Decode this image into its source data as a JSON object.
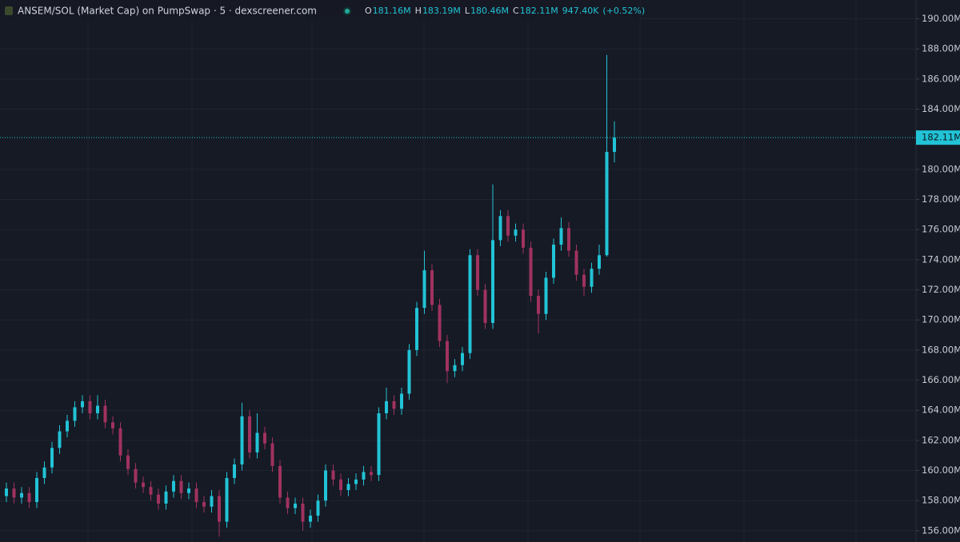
{
  "chart_data": {
    "type": "candlestick",
    "title": "ANSEM/SOL (Market Cap) on PumpSwap · 5 · dexscreener.com",
    "legend": [
      {
        "key": "O",
        "value": "181.16M"
      },
      {
        "key": "H",
        "value": "183.19M"
      },
      {
        "key": "L",
        "value": "180.46M"
      },
      {
        "key": "C",
        "value": "182.11M"
      }
    ],
    "volume": "947.40K",
    "change": "(+0.52%)",
    "up_color": "#22c3d6",
    "down_color": "#a0325f",
    "grid": true,
    "open": [
      158.3,
      158.8,
      158.2,
      158.5,
      157.9,
      159.5,
      160.2,
      161.5,
      162.6,
      163.3,
      164.2,
      164.6,
      163.8,
      164.3,
      163.2,
      162.8,
      161.0,
      160.1,
      159.2,
      158.9,
      158.4,
      157.8,
      158.6,
      159.3,
      158.5,
      158.8,
      157.9,
      157.6,
      158.3,
      156.6,
      159.5,
      160.4,
      163.6,
      161.2,
      162.5,
      161.8,
      160.3,
      158.2,
      157.5,
      157.8,
      156.6,
      157.0,
      158.0,
      160.0,
      159.4,
      158.7,
      159.1,
      159.4,
      159.9,
      159.7,
      163.8,
      164.6,
      164.1,
      165.1,
      168.0,
      170.8,
      173.3,
      171.0,
      168.6,
      166.6,
      167.0,
      167.8,
      174.3,
      172.0,
      169.8,
      175.3,
      176.9,
      175.6,
      176.0,
      174.8,
      171.6,
      170.4,
      172.8,
      175.0,
      176.1,
      174.6,
      173.0,
      172.2,
      173.4,
      174.3,
      181.16
    ],
    "high": [
      159.2,
      159.2,
      158.9,
      158.9,
      159.9,
      160.6,
      161.9,
      163.0,
      163.7,
      164.6,
      165.0,
      165.0,
      165.0,
      164.7,
      163.6,
      163.2,
      161.4,
      160.5,
      159.6,
      159.3,
      158.8,
      159.0,
      159.7,
      159.7,
      159.2,
      159.2,
      158.3,
      158.7,
      158.7,
      159.9,
      160.8,
      164.5,
      164.0,
      163.8,
      162.9,
      162.2,
      160.7,
      158.6,
      158.2,
      158.2,
      157.4,
      158.4,
      160.4,
      160.4,
      159.8,
      159.5,
      159.8,
      160.3,
      160.3,
      164.2,
      165.5,
      165.0,
      165.5,
      168.4,
      171.2,
      174.6,
      173.7,
      171.4,
      169.0,
      167.4,
      168.2,
      174.7,
      174.7,
      172.4,
      179.0,
      177.3,
      177.3,
      176.4,
      176.4,
      175.2,
      172.0,
      173.2,
      175.4,
      176.8,
      176.5,
      175.0,
      173.4,
      173.8,
      175.0,
      187.6,
      183.19
    ],
    "low": [
      157.9,
      157.8,
      157.8,
      157.5,
      157.5,
      159.1,
      159.8,
      161.1,
      162.2,
      162.9,
      163.8,
      163.4,
      163.4,
      162.8,
      162.4,
      160.6,
      159.7,
      158.8,
      158.5,
      158.0,
      157.4,
      157.4,
      158.2,
      158.1,
      158.1,
      157.5,
      157.2,
      157.2,
      155.6,
      156.2,
      159.1,
      160.0,
      160.8,
      160.8,
      161.4,
      159.9,
      157.8,
      157.1,
      157.1,
      156.0,
      156.2,
      156.6,
      157.6,
      159.0,
      158.3,
      158.3,
      158.7,
      159.0,
      159.3,
      159.3,
      163.4,
      163.7,
      163.7,
      164.7,
      167.6,
      170.4,
      170.6,
      168.2,
      165.8,
      166.2,
      166.6,
      167.4,
      171.6,
      169.4,
      169.4,
      174.9,
      175.2,
      175.2,
      174.4,
      171.2,
      169.1,
      170.0,
      172.4,
      174.6,
      174.2,
      172.6,
      171.6,
      171.8,
      173.0,
      174.2,
      180.46
    ],
    "close": [
      158.8,
      158.2,
      158.5,
      157.9,
      159.5,
      160.2,
      161.5,
      162.6,
      163.3,
      164.2,
      164.6,
      163.8,
      164.3,
      163.2,
      162.8,
      161.0,
      160.1,
      159.2,
      158.9,
      158.4,
      157.8,
      158.6,
      159.3,
      158.5,
      158.8,
      157.9,
      157.6,
      158.3,
      156.6,
      159.5,
      160.4,
      163.6,
      161.2,
      162.5,
      161.8,
      160.3,
      158.2,
      157.5,
      157.8,
      156.6,
      157.0,
      158.0,
      160.0,
      159.4,
      158.7,
      159.1,
      159.4,
      159.9,
      159.7,
      163.8,
      164.6,
      164.1,
      165.1,
      168.0,
      170.8,
      173.3,
      171.0,
      168.6,
      166.6,
      167.0,
      167.8,
      174.3,
      172.0,
      169.8,
      175.3,
      176.9,
      175.6,
      176.0,
      174.8,
      171.6,
      170.4,
      172.8,
      175.0,
      176.1,
      174.6,
      173.0,
      172.2,
      173.4,
      174.3,
      181.16,
      182.11
    ],
    "ylim": [
      155.25,
      191.25
    ],
    "yticks": [
      {
        "value": 156,
        "label": "156.00M"
      },
      {
        "value": 158,
        "label": "158.00M"
      },
      {
        "value": 160,
        "label": "160.00M"
      },
      {
        "value": 162,
        "label": "162.00M"
      },
      {
        "value": 164,
        "label": "164.00M"
      },
      {
        "value": 166,
        "label": "166.00M"
      },
      {
        "value": 168,
        "label": "168.00M"
      },
      {
        "value": 170,
        "label": "170.00M"
      },
      {
        "value": 172,
        "label": "172.00M"
      },
      {
        "value": 174,
        "label": "174.00M"
      },
      {
        "value": 176,
        "label": "176.00M"
      },
      {
        "value": 178,
        "label": "178.00M"
      },
      {
        "value": 180,
        "label": "180.00M"
      },
      {
        "value": 184,
        "label": "184.00M"
      },
      {
        "value": 186,
        "label": "186.00M"
      },
      {
        "value": 188,
        "label": "188.00M"
      },
      {
        "value": 190,
        "label": "190.00M"
      }
    ],
    "last_price": {
      "value": 182.11,
      "label": "182.11M"
    }
  }
}
